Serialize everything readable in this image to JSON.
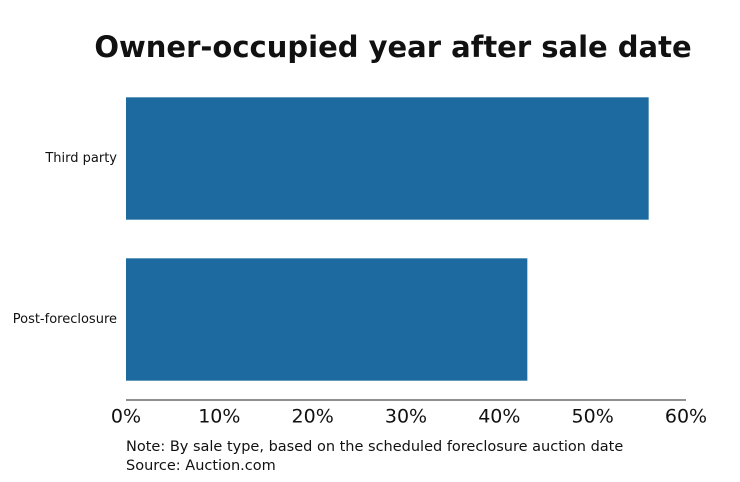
{
  "chart_data": {
    "type": "barh",
    "title": "Owner-occupied year after sale date",
    "categories": [
      "Third party",
      "Post-foreclosure"
    ],
    "values": [
      56,
      43
    ],
    "color": "#1c6aa0",
    "xlim": [
      0,
      60
    ],
    "xticks": [
      {
        "value": 0,
        "label": "0%"
      },
      {
        "value": 10,
        "label": "10%"
      },
      {
        "value": 20,
        "label": "20%"
      },
      {
        "value": 30,
        "label": "30%"
      },
      {
        "value": 40,
        "label": "40%"
      },
      {
        "value": 50,
        "label": "50%"
      },
      {
        "value": 60,
        "label": "60%"
      }
    ],
    "notes": [
      "Note: By sale type, based on the scheduled foreclosure auction date",
      "Source: Auction.com"
    ]
  }
}
